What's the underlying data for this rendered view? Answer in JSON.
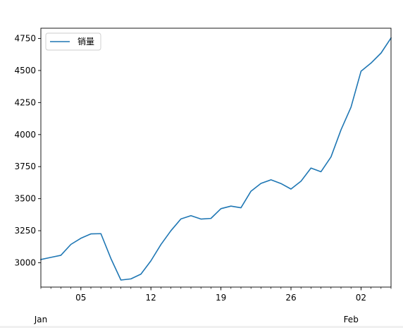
{
  "chart_data": {
    "type": "line",
    "title": "",
    "xlabel": "",
    "ylabel": "",
    "x_start": "2021-01-01",
    "x_end": "2021-02-05",
    "x_tick_labels": [
      {
        "date": "2021-01-05",
        "label": "05"
      },
      {
        "date": "2021-01-12",
        "label": "12"
      },
      {
        "date": "2021-01-19",
        "label": "19"
      },
      {
        "date": "2021-01-26",
        "label": "26"
      },
      {
        "date": "2021-02-02",
        "label": "02"
      }
    ],
    "month_labels": [
      {
        "date": "2021-01-01",
        "label": "Jan"
      },
      {
        "date": "2021-02-01",
        "label": "Feb"
      }
    ],
    "y_ticks": [
      3000,
      3250,
      3500,
      3750,
      4000,
      4250,
      4500,
      4750
    ],
    "ylim": [
      2810,
      4830
    ],
    "grid": false,
    "legend_position": "top-left",
    "series": [
      {
        "name": "销量",
        "color": "#1f77b4",
        "x": [
          "2021-01-01",
          "2021-01-02",
          "2021-01-03",
          "2021-01-04",
          "2021-01-05",
          "2021-01-06",
          "2021-01-07",
          "2021-01-08",
          "2021-01-09",
          "2021-01-10",
          "2021-01-11",
          "2021-01-12",
          "2021-01-13",
          "2021-01-14",
          "2021-01-15",
          "2021-01-16",
          "2021-01-17",
          "2021-01-18",
          "2021-01-19",
          "2021-01-20",
          "2021-01-21",
          "2021-01-22",
          "2021-01-23",
          "2021-01-24",
          "2021-01-25",
          "2021-01-26",
          "2021-01-27",
          "2021-01-28",
          "2021-01-29",
          "2021-01-30",
          "2021-01-31",
          "2021-02-01",
          "2021-02-02",
          "2021-02-03",
          "2021-02-04",
          "2021-02-05"
        ],
        "values": [
          3025,
          3042,
          3058,
          3143,
          3191,
          3225,
          3227,
          3033,
          2865,
          2874,
          2911,
          3015,
          3142,
          3250,
          3342,
          3367,
          3341,
          3346,
          3422,
          3442,
          3429,
          3558,
          3619,
          3647,
          3618,
          3575,
          3636,
          3739,
          3710,
          3826,
          4037,
          4214,
          4494,
          4558,
          4636,
          4754
        ]
      }
    ]
  }
}
